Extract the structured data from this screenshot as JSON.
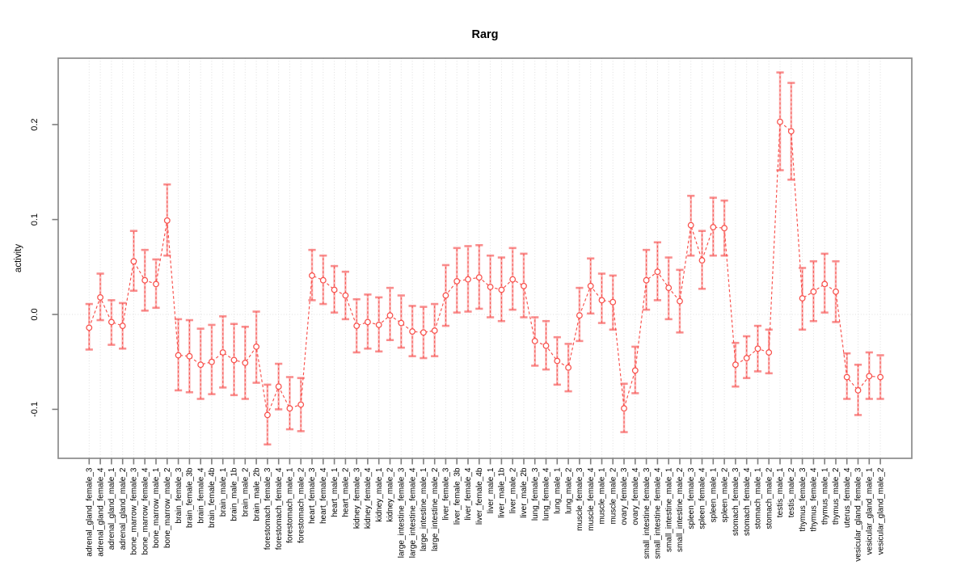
{
  "chart_data": {
    "type": "scatter",
    "title": "Rarg",
    "xlabel": "",
    "ylabel": "activity",
    "ylim": [
      -0.152,
      0.27
    ],
    "yticks": [
      -0.1,
      0.0,
      0.1,
      0.2
    ],
    "ytick_labels": [
      "-0.1",
      "0.0",
      "0.1",
      "0.2"
    ],
    "grid": {
      "vertical_dotted_per_category": true,
      "horizontal_dotted_at_zero": true
    },
    "marker": "open-circle",
    "line_style": "dashed",
    "error_bars": true,
    "legend": null,
    "colors": {
      "series": "#f8504b",
      "error_bar": "#f87a7a",
      "grid": "#dfdfdf",
      "axis": "#7e7e7e",
      "box": "#8b8b8b",
      "text": "#000000",
      "background": "#ffffff"
    },
    "categories": [
      "adrenal_gland_female_3",
      "adrenal_gland_female_4",
      "adrenal_gland_male_1",
      "adrenal_gland_male_2",
      "bone_marrow_female_3",
      "bone_marrow_female_4",
      "bone_marrow_male_1",
      "bone_marrow_male_2",
      "brain_female_3",
      "brain_female_3b",
      "brain_female_4",
      "brain_female_4b",
      "brain_male_1",
      "brain_male_1b",
      "brain_male_2",
      "brain_male_2b",
      "forestomach_female_3",
      "forestomach_female_4",
      "forestomach_male_1",
      "forestomach_male_2",
      "heart_female_3",
      "heart_female_4",
      "heart_male_1",
      "heart_male_2",
      "kidney_female_3",
      "kidney_female_4",
      "kidney_male_1",
      "kidney_male_2",
      "large_intestine_female_3",
      "large_intestine_female_4",
      "large_intestine_male_1",
      "large_intestine_male_2",
      "liver_female_3",
      "liver_female_3b",
      "liver_female_4",
      "liver_female_4b",
      "liver_male_1",
      "liver_male_1b",
      "liver_male_2",
      "liver_male_2b",
      "lung_female_3",
      "lung_female_4",
      "lung_male_1",
      "lung_male_2",
      "muscle_female_3",
      "muscle_female_4",
      "muscle_male_1",
      "muscle_male_2",
      "ovary_female_3",
      "ovary_female_4",
      "small_intestine_female_3",
      "small_intestine_female_4",
      "small_intestine_male_1",
      "small_intestine_male_2",
      "spleen_female_3",
      "spleen_female_4",
      "spleen_male_1",
      "spleen_male_2",
      "stomach_female_3",
      "stomach_female_4",
      "stomach_male_1",
      "stomach_male_2",
      "testis_male_1",
      "testis_male_2",
      "thymus_female_3",
      "thymus_female_4",
      "thymus_male_1",
      "thymus_male_2",
      "uterus_female_4",
      "vesicular_gland_female_3",
      "vesicular_gland_male_1",
      "vesicular_gland_male_2"
    ],
    "series": [
      {
        "name": "activity",
        "values": [
          -0.014,
          0.018,
          -0.008,
          -0.012,
          0.056,
          0.036,
          0.032,
          0.099,
          -0.043,
          -0.044,
          -0.053,
          -0.05,
          -0.04,
          -0.048,
          -0.051,
          -0.034,
          -0.106,
          -0.076,
          -0.099,
          -0.095,
          0.041,
          0.036,
          0.026,
          0.02,
          -0.012,
          -0.008,
          -0.011,
          -0.001,
          -0.009,
          -0.018,
          -0.019,
          -0.017,
          0.02,
          0.035,
          0.037,
          0.039,
          0.029,
          0.026,
          0.037,
          0.03,
          -0.028,
          -0.033,
          -0.049,
          -0.056,
          -0.001,
          0.03,
          0.015,
          0.013,
          -0.099,
          -0.059,
          0.036,
          0.045,
          0.028,
          0.014,
          0.094,
          0.057,
          0.092,
          0.091,
          -0.053,
          -0.046,
          -0.036,
          -0.04,
          0.203,
          0.193,
          0.017,
          0.024,
          0.032,
          0.024,
          -0.066,
          -0.08,
          -0.065,
          -0.066
        ],
        "lower": [
          -0.037,
          -0.006,
          -0.032,
          -0.036,
          0.025,
          0.004,
          0.007,
          0.062,
          -0.08,
          -0.082,
          -0.089,
          -0.084,
          -0.077,
          -0.085,
          -0.089,
          -0.072,
          -0.137,
          -0.1,
          -0.121,
          -0.123,
          0.015,
          0.011,
          0.002,
          -0.005,
          -0.04,
          -0.036,
          -0.039,
          -0.027,
          -0.035,
          -0.044,
          -0.046,
          -0.044,
          -0.012,
          0.002,
          0.003,
          0.006,
          -0.003,
          -0.007,
          0.005,
          -0.003,
          -0.054,
          -0.058,
          -0.074,
          -0.081,
          -0.028,
          0.001,
          -0.009,
          -0.016,
          -0.124,
          -0.083,
          0.005,
          0.015,
          -0.005,
          -0.019,
          0.062,
          0.027,
          0.062,
          0.062,
          -0.076,
          -0.067,
          -0.06,
          -0.062,
          0.152,
          0.142,
          -0.016,
          -0.007,
          0.002,
          -0.008,
          -0.089,
          -0.106,
          -0.089,
          -0.089
        ],
        "upper": [
          0.011,
          0.043,
          0.015,
          0.012,
          0.088,
          0.068,
          0.058,
          0.137,
          -0.005,
          -0.006,
          -0.015,
          -0.011,
          -0.002,
          -0.01,
          -0.013,
          0.003,
          -0.074,
          -0.052,
          -0.066,
          -0.067,
          0.068,
          0.062,
          0.051,
          0.045,
          0.016,
          0.021,
          0.018,
          0.028,
          0.02,
          0.009,
          0.008,
          0.011,
          0.052,
          0.07,
          0.072,
          0.073,
          0.062,
          0.06,
          0.07,
          0.064,
          -0.003,
          -0.007,
          -0.024,
          -0.031,
          0.028,
          0.059,
          0.043,
          0.041,
          -0.073,
          -0.034,
          0.068,
          0.076,
          0.06,
          0.047,
          0.125,
          0.088,
          0.123,
          0.12,
          -0.03,
          -0.023,
          -0.012,
          -0.016,
          0.255,
          0.244,
          0.049,
          0.056,
          0.064,
          0.056,
          -0.041,
          -0.053,
          -0.04,
          -0.043
        ]
      }
    ]
  }
}
